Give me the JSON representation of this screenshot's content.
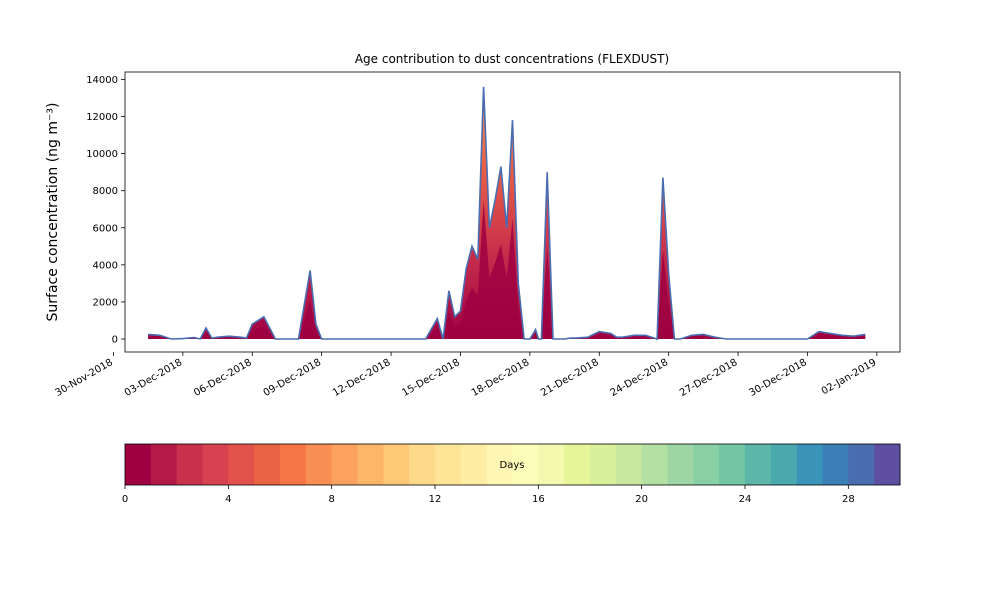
{
  "chart_data": {
    "type": "area",
    "title": "Age contribution to dust concentrations (FLEXDUST)",
    "ylabel": "Surface concentration (ng m⁻³)",
    "ylim": [
      -700,
      14400
    ],
    "yticks": [
      0,
      2000,
      4000,
      6000,
      8000,
      10000,
      12000,
      14000
    ],
    "xlim": [
      "2018-11-30T12:00",
      "2019-01-03T00:00"
    ],
    "xtick_labels": [
      "30-Nov-2018",
      "03-Dec-2018",
      "06-Dec-2018",
      "09-Dec-2018",
      "12-Dec-2018",
      "15-Dec-2018",
      "18-Dec-2018",
      "21-Dec-2018",
      "24-Dec-2018",
      "27-Dec-2018",
      "30-Dec-2018",
      "02-Jan-2019"
    ],
    "xtick_dates": [
      "2018-11-30",
      "2018-12-03",
      "2018-12-06",
      "2018-12-09",
      "2018-12-12",
      "2018-12-15",
      "2018-12-18",
      "2018-12-21",
      "2018-12-24",
      "2018-12-27",
      "2018-12-30",
      "2019-01-02"
    ],
    "x": [
      "2018-12-01T12:00",
      "2018-12-02T00:00",
      "2018-12-02T12:00",
      "2018-12-03T00:00",
      "2018-12-03T12:00",
      "2018-12-03T18:00",
      "2018-12-04T00:00",
      "2018-12-04T06:00",
      "2018-12-04T12:00",
      "2018-12-05T00:00",
      "2018-12-05T12:00",
      "2018-12-05T18:00",
      "2018-12-06T00:00",
      "2018-12-06T12:00",
      "2018-12-07T00:00",
      "2018-12-08T00:00",
      "2018-12-08T12:00",
      "2018-12-08T18:00",
      "2018-12-09T00:00",
      "2018-12-09T06:00",
      "2018-12-09T12:00",
      "2018-12-10T00:00",
      "2018-12-12T00:00",
      "2018-12-13T12:00",
      "2018-12-14T00:00",
      "2018-12-14T06:00",
      "2018-12-14T12:00",
      "2018-12-14T18:00",
      "2018-12-15T00:00",
      "2018-12-15T06:00",
      "2018-12-15T12:00",
      "2018-12-15T18:00",
      "2018-12-16T00:00",
      "2018-12-16T06:00",
      "2018-12-16T12:00",
      "2018-12-16T18:00",
      "2018-12-17T00:00",
      "2018-12-17T06:00",
      "2018-12-17T12:00",
      "2018-12-17T18:00",
      "2018-12-18T00:00",
      "2018-12-18T06:00",
      "2018-12-18T09:00",
      "2018-12-18T12:00",
      "2018-12-18T18:00",
      "2018-12-19T00:00",
      "2018-12-19T06:00",
      "2018-12-19T12:00",
      "2018-12-19T18:00",
      "2018-12-20T00:00",
      "2018-12-20T12:00",
      "2018-12-21T00:00",
      "2018-12-21T12:00",
      "2018-12-21T18:00",
      "2018-12-22T00:00",
      "2018-12-22T12:00",
      "2018-12-23T00:00",
      "2018-12-23T12:00",
      "2018-12-23T18:00",
      "2018-12-24T00:00",
      "2018-12-24T06:00",
      "2018-12-24T12:00",
      "2018-12-25T00:00",
      "2018-12-25T12:00",
      "2018-12-26T00:00",
      "2018-12-26T12:00",
      "2018-12-27T00:00",
      "2018-12-28T00:00",
      "2018-12-29T00:00",
      "2018-12-29T12:00",
      "2018-12-30T00:00",
      "2018-12-30T12:00",
      "2018-12-31T00:00",
      "2018-12-31T12:00",
      "2019-01-01T00:00",
      "2019-01-01T06:00",
      "2019-01-01T12:00"
    ],
    "series": [
      {
        "name": "0",
        "color": "#9e0142",
        "values": [
          0,
          0,
          0,
          0,
          0,
          0,
          0,
          0,
          0,
          0,
          0,
          0,
          0,
          0,
          0,
          0,
          0,
          0,
          0,
          0,
          0,
          0,
          0,
          0,
          0,
          0,
          0,
          0,
          0,
          0,
          0,
          0,
          0,
          0,
          0,
          0,
          0,
          0,
          0,
          0,
          0,
          0,
          0,
          0,
          0,
          0,
          0,
          0,
          0,
          0,
          0,
          0,
          0,
          0,
          0,
          0,
          0,
          0,
          0,
          0,
          0,
          0,
          0,
          0,
          0,
          0,
          0,
          0,
          0,
          0,
          0,
          0,
          0,
          0,
          0,
          0,
          0
        ]
      }
    ],
    "totals": [
      250,
      200,
      0,
      20,
      80,
      0,
      600,
      50,
      100,
      150,
      100,
      50,
      800,
      1200,
      0,
      0,
      3700,
      800,
      0,
      0,
      0,
      0,
      0,
      0,
      1100,
      0,
      2600,
      1200,
      1500,
      3800,
      5000,
      4300,
      13600,
      6000,
      7500,
      9300,
      6000,
      11800,
      3000,
      0,
      0,
      500,
      0,
      0,
      9000,
      0,
      0,
      0,
      50,
      50,
      100,
      400,
      300,
      100,
      100,
      200,
      200,
      0,
      8700,
      3500,
      0,
      0,
      200,
      250,
      100,
      0,
      0,
      0,
      0,
      0,
      0,
      400,
      300,
      200,
      150,
      200,
      250
    ],
    "colorbar": {
      "label": "Days",
      "min": 0,
      "max": 30,
      "ticks": [
        0,
        4,
        8,
        12,
        16,
        20,
        24,
        28
      ],
      "colors": [
        "#9e0142",
        "#b41947",
        "#c9304c",
        "#d84250",
        "#e1524a",
        "#ea6344",
        "#f57547",
        "#f98e52",
        "#fba35e",
        "#fdb667",
        "#fec877",
        "#fed98a",
        "#fee496",
        "#feeda2",
        "#fff6b3",
        "#fbfdb9",
        "#f3fab0",
        "#e6f598",
        "#d8ef9c",
        "#c7e89e",
        "#b3e0a3",
        "#9dd6a4",
        "#88cfa4",
        "#73c6a4",
        "#5db7a9",
        "#49a9ad",
        "#3a94b8",
        "#3a7fb8",
        "#4a6db1",
        "#5e4fa2"
      ]
    }
  }
}
